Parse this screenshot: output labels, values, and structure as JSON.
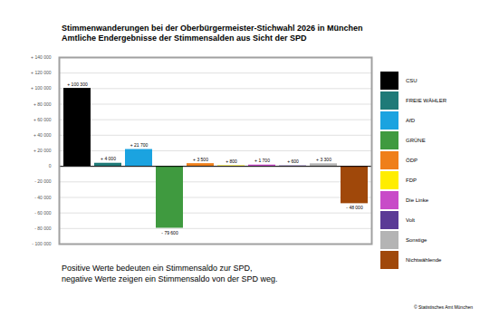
{
  "chart_data": {
    "type": "bar",
    "title": "Stimmenwanderungen bei der Oberbürgermeister-Stichwahl 2026 in München",
    "subtitle": "Amtliche Endergebnisse der Stimmensalden aus Sicht der SPD",
    "categories": [
      "CSU",
      "FREIE WÄHLER",
      "AfD",
      "GRÜNE",
      "ÖDP",
      "FDP",
      "Die Linke",
      "Volt",
      "Sonstige",
      "Nichtwählende"
    ],
    "values": [
      100300,
      4000,
      21700,
      -79600,
      3500,
      800,
      1700,
      600,
      3300,
      -48000
    ],
    "value_labels": [
      "+ 100 300",
      "+ 4 000",
      "+ 21 700",
      "- 79 600",
      "+ 3 500",
      "+ 800",
      "+ 1 700",
      "+ 600",
      "+ 3 300",
      "- 48 000"
    ],
    "colors": [
      "#000000",
      "#1f7a78",
      "#1ba3e0",
      "#3f9a3f",
      "#ef7f1a",
      "#ffed00",
      "#c84bc8",
      "#5b3a96",
      "#b4b4b4",
      "#a0480a"
    ],
    "ylim": [
      -100000,
      140000
    ],
    "yticks": [
      {
        "value": -100000,
        "label": "- 100 000"
      },
      {
        "value": -80000,
        "label": "- 80 000"
      },
      {
        "value": -60000,
        "label": "- 60 000"
      },
      {
        "value": -40000,
        "label": "- 40 000"
      },
      {
        "value": -20000,
        "label": "- 20 000"
      },
      0,
      {
        "value": 20000,
        "label": "+ 20 000"
      },
      {
        "value": 40000,
        "label": "+ 40 000"
      },
      {
        "value": 60000,
        "label": "+ 60 000"
      },
      {
        "value": 80000,
        "label": "+ 80 000"
      },
      {
        "value": 100000,
        "label": "+ 100 000"
      },
      {
        "value": 120000,
        "label": "+ 120 000"
      },
      {
        "value": 140000,
        "label": "+ 140 000"
      }
    ],
    "grid": true,
    "data_labels": true,
    "tick_labels": "y",
    "legend": "right",
    "annotations": [
      "Positive Werte bedeuten ein Stimmensaldo zur SPD,",
      "negative Werte zeigen ein Stimmensaldo von der SPD weg.",
      "© Statistisches Amt München"
    ]
  }
}
